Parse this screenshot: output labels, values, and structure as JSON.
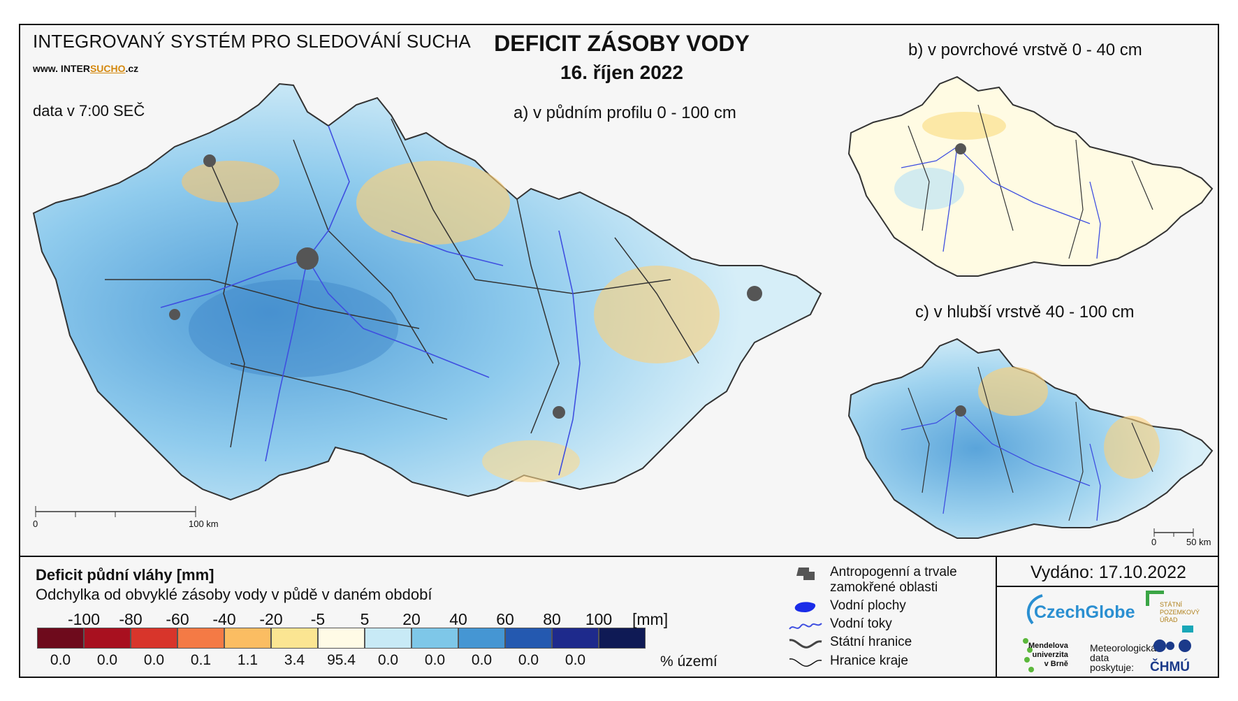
{
  "header": {
    "system_title": "INTEGROVANÝ SYSTÉM PRO SLEDOVÁNÍ SUCHA",
    "url_prefix": "www. INTER",
    "url_brand": "SUCHO",
    "url_suffix": ".cz",
    "data_time": "data v 7:00 SEČ",
    "main_title": "DEFICIT ZÁSOBY VODY",
    "date": "16. říjen 2022"
  },
  "maps": {
    "a_title": "a) v půdním profilu 0 - 100 cm",
    "b_title": "b) v povrchové vrstvě 0 - 40 cm",
    "c_title": "c) v hlubší vrstvě 40 - 100 cm",
    "scale_main": {
      "start": "0",
      "end": "100 km"
    },
    "scale_small": {
      "start": "0",
      "end": "50 km"
    }
  },
  "legend": {
    "title": "Deficit půdní vláhy  [mm]",
    "subtitle": "Odchylka od obvyklé zásoby vody v půdě v daném období",
    "ticks": [
      "-100",
      "-80",
      "-60",
      "-40",
      "-20",
      "-5",
      "5",
      "20",
      "40",
      "60",
      "80",
      "100"
    ],
    "unit": "[mm]",
    "colors": [
      "#6e0a1c",
      "#a8101f",
      "#d8352b",
      "#f47a45",
      "#fbbd62",
      "#fbe592",
      "#fffbe6",
      "#c8eaf6",
      "#7ec7e8",
      "#4596d3",
      "#2459b0",
      "#1e2a8c",
      "#0f1a55"
    ],
    "percentages": [
      "0.0",
      "0.0",
      "0.0",
      "0.1",
      "1.1",
      "3.4",
      "95.4",
      "0.0",
      "0.0",
      "0.0",
      "0.0",
      "0.0"
    ],
    "percent_label": "% území"
  },
  "symbols": [
    {
      "label_1": "Antropogenní a trvale",
      "label_2": "zamokřené oblasti",
      "icon": "urban-area-icon"
    },
    {
      "label_1": "Vodní plochy",
      "label_2": "",
      "icon": "water-body-icon"
    },
    {
      "label_1": "Vodní toky",
      "label_2": "",
      "icon": "river-icon"
    },
    {
      "label_1": "Státní hranice",
      "label_2": "",
      "icon": "state-border-icon"
    },
    {
      "label_1": "Hranice kraje",
      "label_2": "",
      "icon": "region-border-icon"
    }
  ],
  "footer": {
    "issued": "Vydáno: 17.10.2022",
    "czechglobe": "CzechGlobe",
    "spu_1": "STÁTNÍ",
    "spu_2": "POZEMKOVÝ",
    "spu_3": "ÚŘAD",
    "mendel_1": "Mendelova",
    "mendel_2": "univerzita",
    "mendel_3": "v Brně",
    "met_1": "Meteorologická",
    "met_2": "data",
    "met_3": "poskytuje:",
    "chmu": "ČHMÚ"
  }
}
